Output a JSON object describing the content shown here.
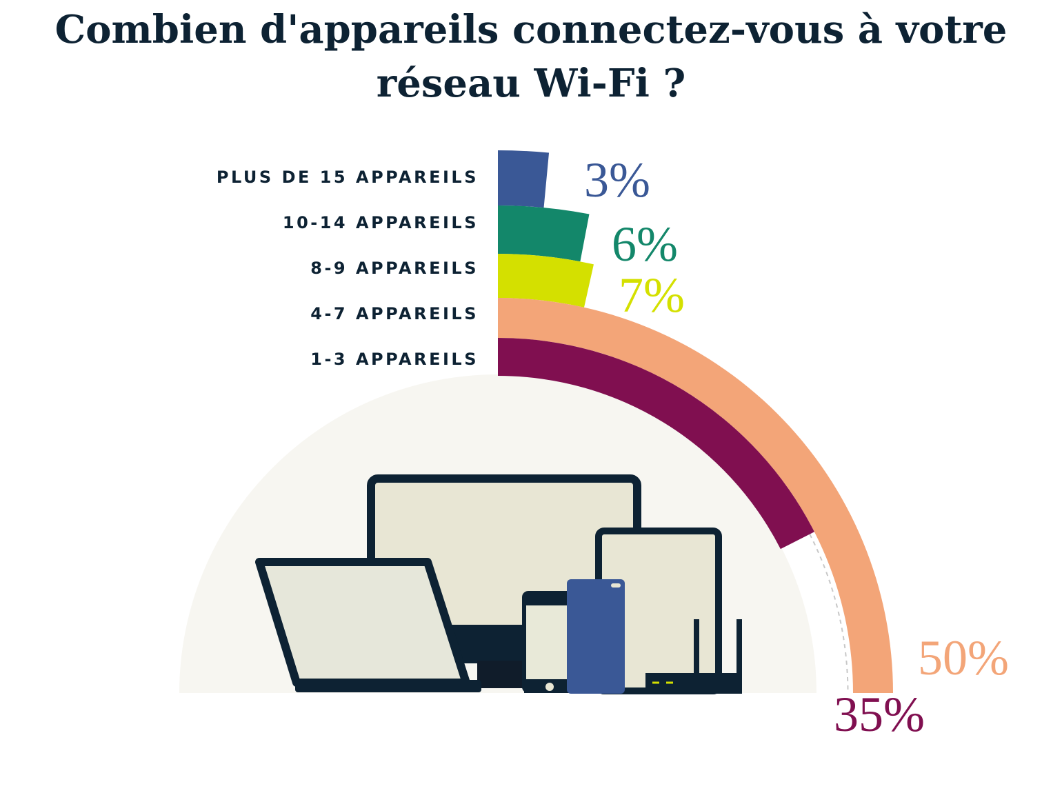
{
  "chart_data": {
    "type": "radial_bar",
    "title": [
      "Combien d'appareils connectez-vous à votre",
      "réseau Wi-Fi ?"
    ],
    "categories": [
      "PLUS DE 15 APPAREILS",
      "10-14 APPAREILS",
      "8-9 APPAREILS",
      "4-7 APPAREILS",
      "1-3 APPAREILS"
    ],
    "values": [
      3,
      6,
      7,
      50,
      35
    ],
    "value_labels": [
      "3%",
      "6%",
      "7%",
      "50%",
      "35%"
    ],
    "colors": [
      "#3a5896",
      "#13876a",
      "#d4e000",
      "#f3a578",
      "#800f50"
    ]
  }
}
